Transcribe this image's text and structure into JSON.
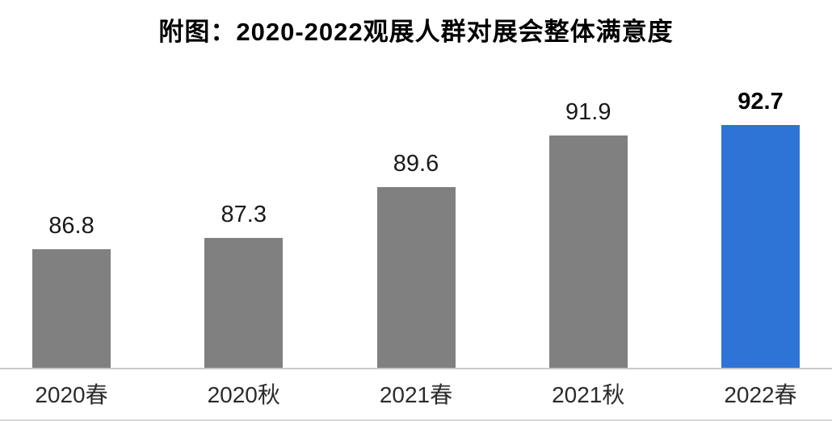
{
  "chart_data": {
    "type": "bar",
    "title": "附图：2020-2022观展人群对展会整体满意度",
    "categories": [
      "2020春",
      "2020秋",
      "2021春",
      "2021秋",
      "2022春"
    ],
    "values": [
      86.8,
      87.3,
      89.6,
      91.9,
      92.7
    ],
    "xlabel": "",
    "ylabel": "",
    "ylim": [
      81.5,
      94
    ],
    "grid": false,
    "legend": false,
    "data_labels": true,
    "highlight_index": 4,
    "colors": {
      "bar_default": "#808080",
      "bar_highlight": "#2E74D6",
      "axis_line": "#c8c8c8",
      "title_text": "#000000",
      "label_text": "#1a1a1a"
    }
  }
}
